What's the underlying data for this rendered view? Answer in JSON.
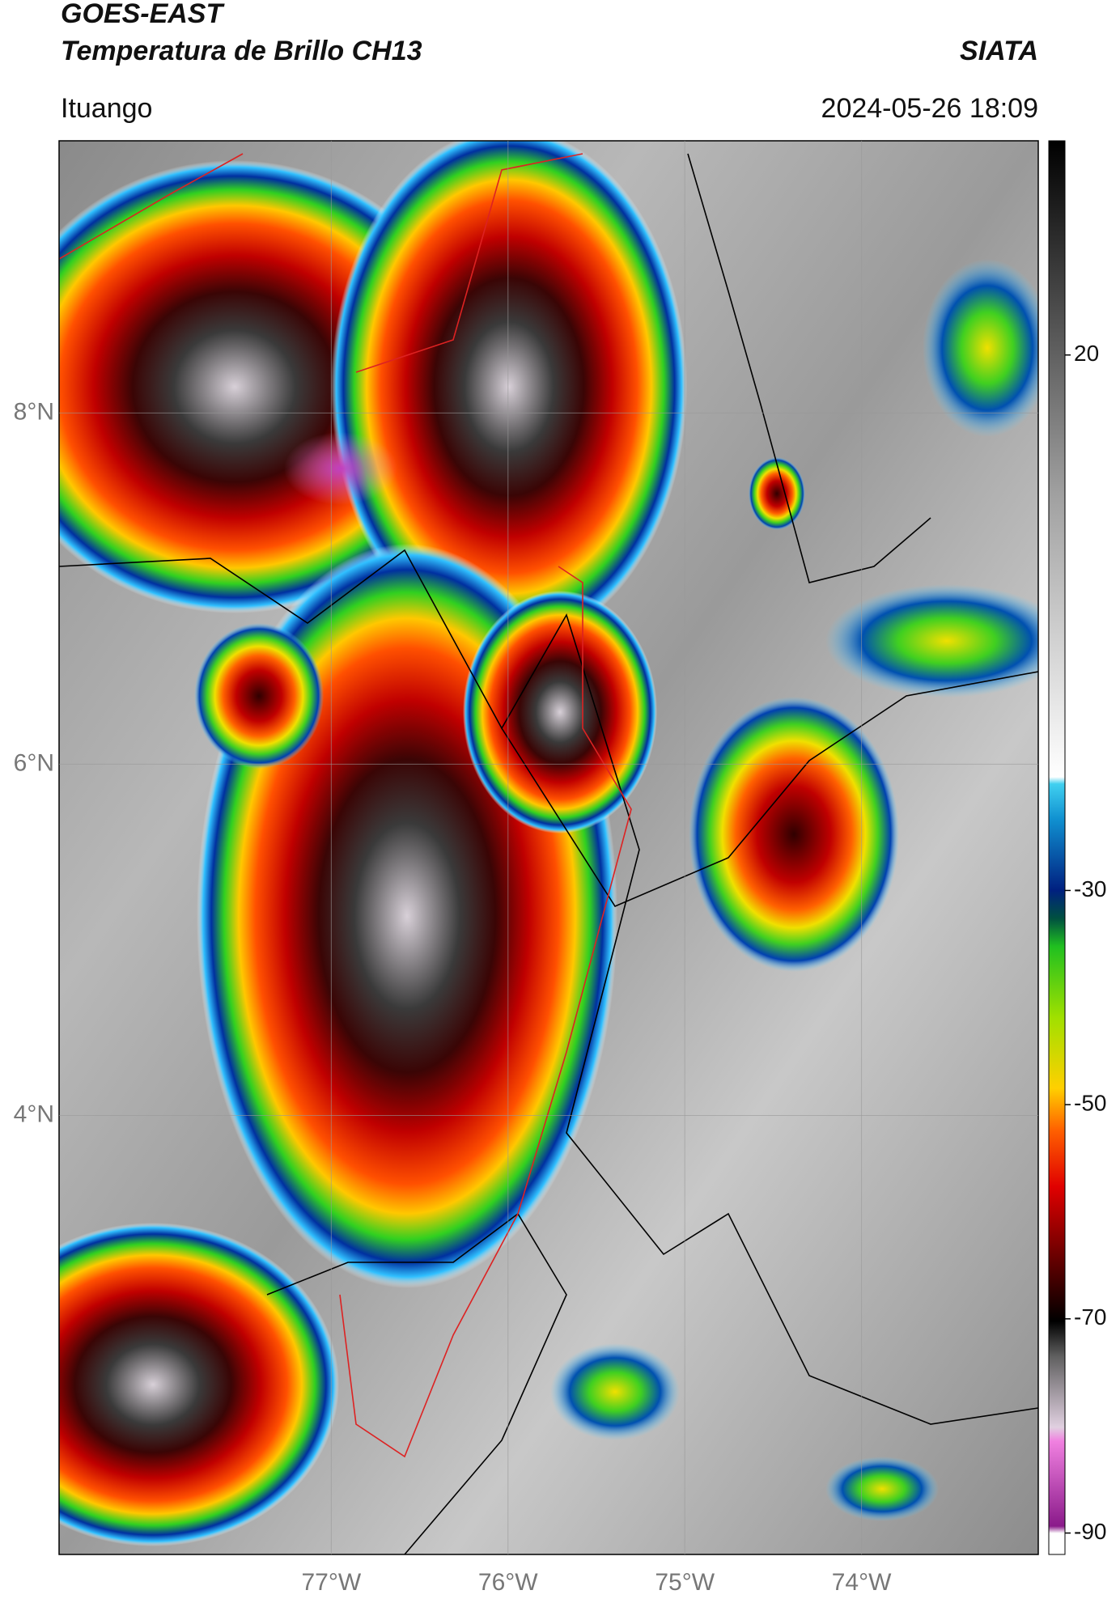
{
  "chart_data": {
    "type": "map",
    "title": "GOES-EAST",
    "subtitle": "Temperatura de Brillo CH13",
    "source": "SIATA",
    "location": "Ituango",
    "datetime": "2024-05-26 18:09",
    "xlim": [
      -78.54,
      -73.0
    ],
    "ylim": [
      1.5,
      9.55
    ],
    "xticks": [
      {
        "value": -77,
        "label": "77°W"
      },
      {
        "value": -76,
        "label": "76°W"
      },
      {
        "value": -75,
        "label": "75°W"
      },
      {
        "value": -74,
        "label": "74°W"
      }
    ],
    "yticks": [
      {
        "value": 8,
        "label": "8°N"
      },
      {
        "value": 6,
        "label": "6°N"
      },
      {
        "value": 4,
        "label": "4°N"
      }
    ],
    "grid": true,
    "colorbar": {
      "lim": [
        -92,
        40
      ],
      "ticks": [
        20,
        -30,
        -50,
        -70,
        -90
      ]
    }
  }
}
